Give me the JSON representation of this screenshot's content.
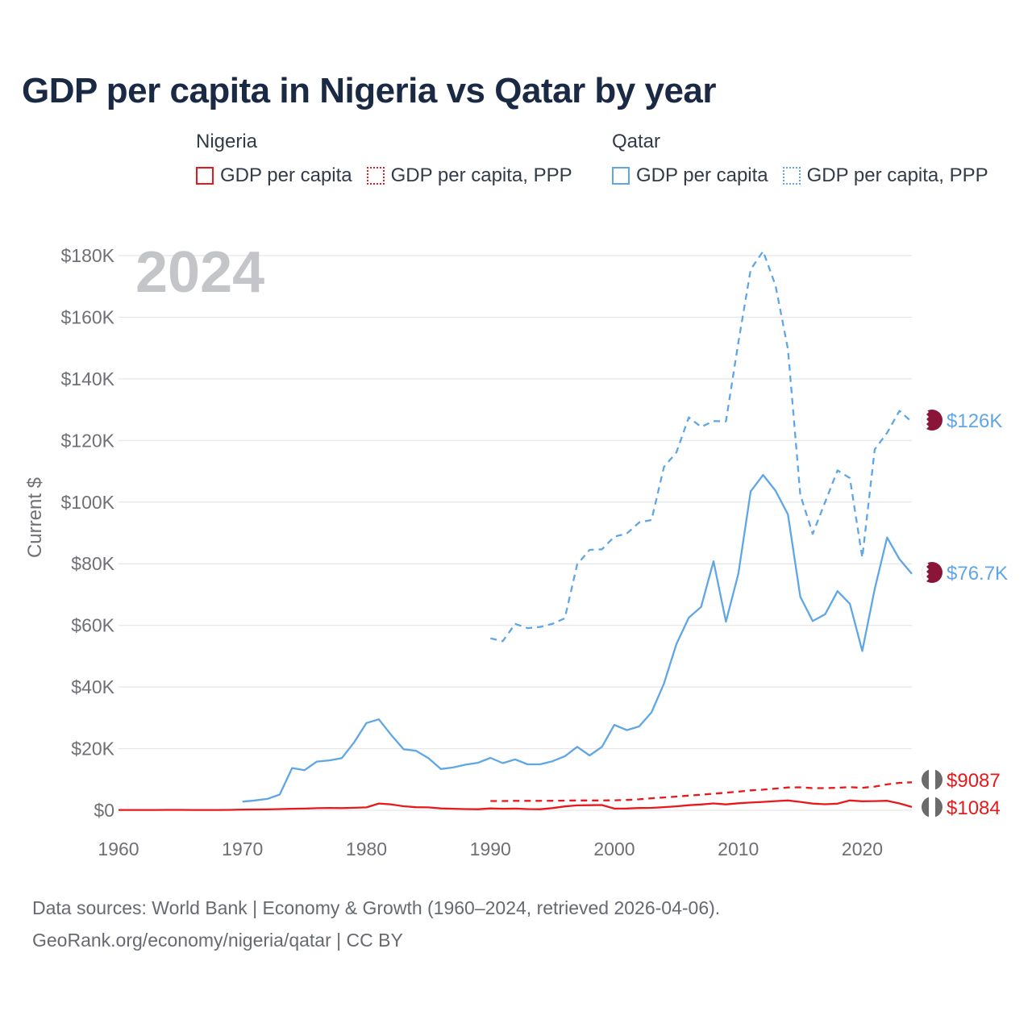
{
  "title": "GDP per capita in Nigeria vs Qatar by year",
  "legend": {
    "groups": [
      {
        "title": "Nigeria",
        "items": [
          {
            "label": "GDP per capita",
            "style": "solid",
            "color": "#e8191c"
          },
          {
            "label": "GDP per capita, PPP",
            "style": "dotted",
            "color": "#e8191c"
          }
        ]
      },
      {
        "title": "Qatar",
        "items": [
          {
            "label": "GDP per capita",
            "style": "solid",
            "color": "#5fa6e6"
          },
          {
            "label": "GDP per capita, PPP",
            "style": "dotted",
            "color": "#5fa6e6"
          }
        ]
      }
    ]
  },
  "year_watermark": "2024",
  "source": {
    "line1": "Data sources: World Bank | Economy & Growth (1960–2024, retrieved 2026-04-06).",
    "line2": "GeoRank.org/economy/nigeria/qatar | CC BY"
  },
  "chart_data": {
    "type": "line",
    "title": "GDP per capita in Nigeria vs Qatar by year",
    "xlabel": "",
    "ylabel": "Current $",
    "xlim": [
      1960,
      2024
    ],
    "ylim": [
      0,
      180000
    ],
    "xticks": [
      1960,
      1970,
      1980,
      1990,
      2000,
      2010,
      2020
    ],
    "xtick_labels": [
      "1960",
      "1970",
      "1980",
      "1990",
      "2000",
      "2010",
      "2020"
    ],
    "yticks": [
      0,
      20000,
      40000,
      60000,
      80000,
      100000,
      120000,
      140000,
      160000,
      180000
    ],
    "ytick_labels": [
      "$0",
      "$20K",
      "$40K",
      "$60K",
      "$80K",
      "$100K",
      "$120K",
      "$140K",
      "$160K",
      "$180K"
    ],
    "grid": true,
    "series": [
      {
        "name": "Nigeria GDP per capita",
        "country": "Nigeria",
        "metric": "GDP per capita",
        "color": "#e8191c",
        "dash": "solid",
        "end_label": "$1084",
        "x": [
          1960,
          1961,
          1962,
          1963,
          1964,
          1965,
          1966,
          1967,
          1968,
          1969,
          1970,
          1971,
          1972,
          1973,
          1974,
          1975,
          1976,
          1977,
          1978,
          1979,
          1980,
          1981,
          1982,
          1983,
          1984,
          1985,
          1986,
          1987,
          1988,
          1989,
          1990,
          1991,
          1992,
          1993,
          1994,
          1995,
          1996,
          1997,
          1998,
          1999,
          2000,
          2001,
          2002,
          2003,
          2004,
          2005,
          2006,
          2007,
          2008,
          2009,
          2010,
          2011,
          2012,
          2013,
          2014,
          2015,
          2016,
          2017,
          2018,
          2019,
          2020,
          2021,
          2022,
          2023,
          2024
        ],
        "y": [
          100,
          105,
          110,
          115,
          118,
          120,
          115,
          110,
          100,
          120,
          230,
          260,
          290,
          390,
          510,
          560,
          670,
          720,
          700,
          820,
          950,
          2200,
          1900,
          1300,
          1000,
          950,
          600,
          500,
          400,
          350,
          600,
          500,
          550,
          400,
          350,
          700,
          1250,
          1600,
          1650,
          1700,
          560,
          580,
          740,
          790,
          1020,
          1270,
          1660,
          1890,
          2220,
          1900,
          2280,
          2500,
          2730,
          2980,
          3200,
          2730,
          2180,
          1970,
          2150,
          3200,
          2920,
          2980,
          3100,
          2230,
          1084
        ]
      },
      {
        "name": "Nigeria GDP per capita, PPP",
        "country": "Nigeria",
        "metric": "GDP per capita, PPP",
        "color": "#e8191c",
        "dash": "dashed",
        "end_label": "$9087",
        "x": [
          1990,
          1991,
          1992,
          1993,
          1994,
          1995,
          1996,
          1997,
          1998,
          1999,
          2000,
          2001,
          2002,
          2003,
          2004,
          2005,
          2006,
          2007,
          2008,
          2009,
          2010,
          2011,
          2012,
          2013,
          2014,
          2015,
          2016,
          2017,
          2018,
          2019,
          2020,
          2021,
          2022,
          2023,
          2024
        ],
        "y": [
          3000,
          3000,
          3050,
          3050,
          3050,
          3100,
          3150,
          3200,
          3200,
          3200,
          3250,
          3350,
          3550,
          3900,
          4150,
          4450,
          4750,
          5050,
          5400,
          5700,
          6050,
          6450,
          6700,
          7050,
          7400,
          7450,
          7200,
          7200,
          7300,
          7500,
          7300,
          7700,
          8400,
          8900,
          9087
        ]
      },
      {
        "name": "Qatar GDP per capita",
        "country": "Qatar",
        "metric": "GDP per capita",
        "color": "#5fa6e6",
        "dash": "solid",
        "end_label": "$76.7K",
        "x": [
          1970,
          1971,
          1972,
          1973,
          1974,
          1975,
          1976,
          1977,
          1978,
          1979,
          1980,
          1981,
          1982,
          1983,
          1984,
          1985,
          1986,
          1987,
          1988,
          1989,
          1990,
          1991,
          1992,
          1993,
          1994,
          1995,
          1996,
          1997,
          1998,
          1999,
          2000,
          2001,
          2002,
          2003,
          2004,
          2005,
          2006,
          2007,
          2008,
          2009,
          2010,
          2011,
          2012,
          2013,
          2014,
          2015,
          2016,
          2017,
          2018,
          2019,
          2020,
          2021,
          2022,
          2023,
          2024
        ],
        "y": [
          2800,
          3200,
          3700,
          5100,
          13700,
          13000,
          15800,
          16200,
          16900,
          22000,
          28300,
          29500,
          24400,
          19800,
          19300,
          16900,
          13400,
          13900,
          14800,
          15400,
          17000,
          15300,
          16500,
          14900,
          14900,
          15900,
          17500,
          20600,
          17800,
          20600,
          27700,
          26000,
          27200,
          31800,
          41100,
          53900,
          62500,
          66000,
          80800,
          61200,
          76800,
          103500,
          108800,
          103700,
          96000,
          69300,
          61400,
          63600,
          71100,
          67000,
          51700,
          71800,
          88500,
          81500,
          76700
        ]
      },
      {
        "name": "Qatar GDP per capita, PPP",
        "country": "Qatar",
        "metric": "GDP per capita, PPP",
        "color": "#5fa6e6",
        "dash": "dashed",
        "end_label": "$126K",
        "x": [
          1990,
          1991,
          1992,
          1993,
          1994,
          1995,
          1996,
          1997,
          1998,
          1999,
          2000,
          2001,
          2002,
          2003,
          2004,
          2005,
          2006,
          2007,
          2008,
          2009,
          2010,
          2011,
          2012,
          2013,
          2014,
          2015,
          2016,
          2017,
          2018,
          2019,
          2020,
          2021,
          2022,
          2023,
          2024
        ],
        "y": [
          55800,
          54900,
          60500,
          59100,
          59500,
          60500,
          62300,
          79800,
          84500,
          84700,
          88800,
          89800,
          93400,
          94200,
          111400,
          116100,
          127500,
          124400,
          126300,
          126200,
          151800,
          175500,
          181400,
          170300,
          149600,
          102400,
          89700,
          100000,
          110300,
          107800,
          82000,
          117100,
          122500,
          129600,
          126000
        ]
      }
    ]
  }
}
